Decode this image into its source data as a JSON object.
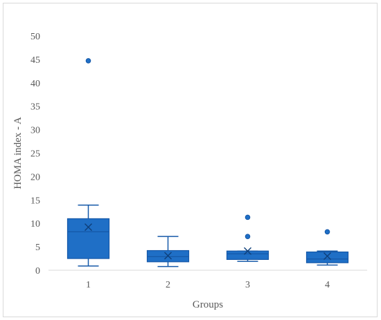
{
  "chart_data": {
    "type": "box",
    "xlabel": "Groups",
    "ylabel": "HOMA index - A",
    "ylim": [
      0,
      50
    ],
    "yticks": [
      0,
      5,
      10,
      15,
      20,
      25,
      30,
      35,
      40,
      45,
      50
    ],
    "categories": [
      "1",
      "2",
      "3",
      "4"
    ],
    "grid": false,
    "color": "#1f6fc6",
    "edge_color": "#1558a8",
    "boxes": [
      {
        "category": "1",
        "whisker_low": 0.9,
        "q1": 2.5,
        "median": 8.2,
        "q3": 11.0,
        "whisker_high": 13.9,
        "mean": 9.2,
        "outliers": [
          44.7
        ]
      },
      {
        "category": "2",
        "whisker_low": 0.8,
        "q1": 1.8,
        "median": 2.9,
        "q3": 4.2,
        "whisker_high": 7.2,
        "mean": 3.1,
        "outliers": []
      },
      {
        "category": "3",
        "whisker_low": 1.9,
        "q1": 2.3,
        "median": 3.5,
        "q3": 4.1,
        "whisker_high": 4.1,
        "mean": 4.1,
        "outliers": [
          7.2,
          11.3
        ]
      },
      {
        "category": "4",
        "whisker_low": 1.1,
        "q1": 1.6,
        "median": 2.4,
        "q3": 3.9,
        "whisker_high": 4.1,
        "mean": 3.0,
        "outliers": [
          8.2
        ]
      }
    ]
  }
}
